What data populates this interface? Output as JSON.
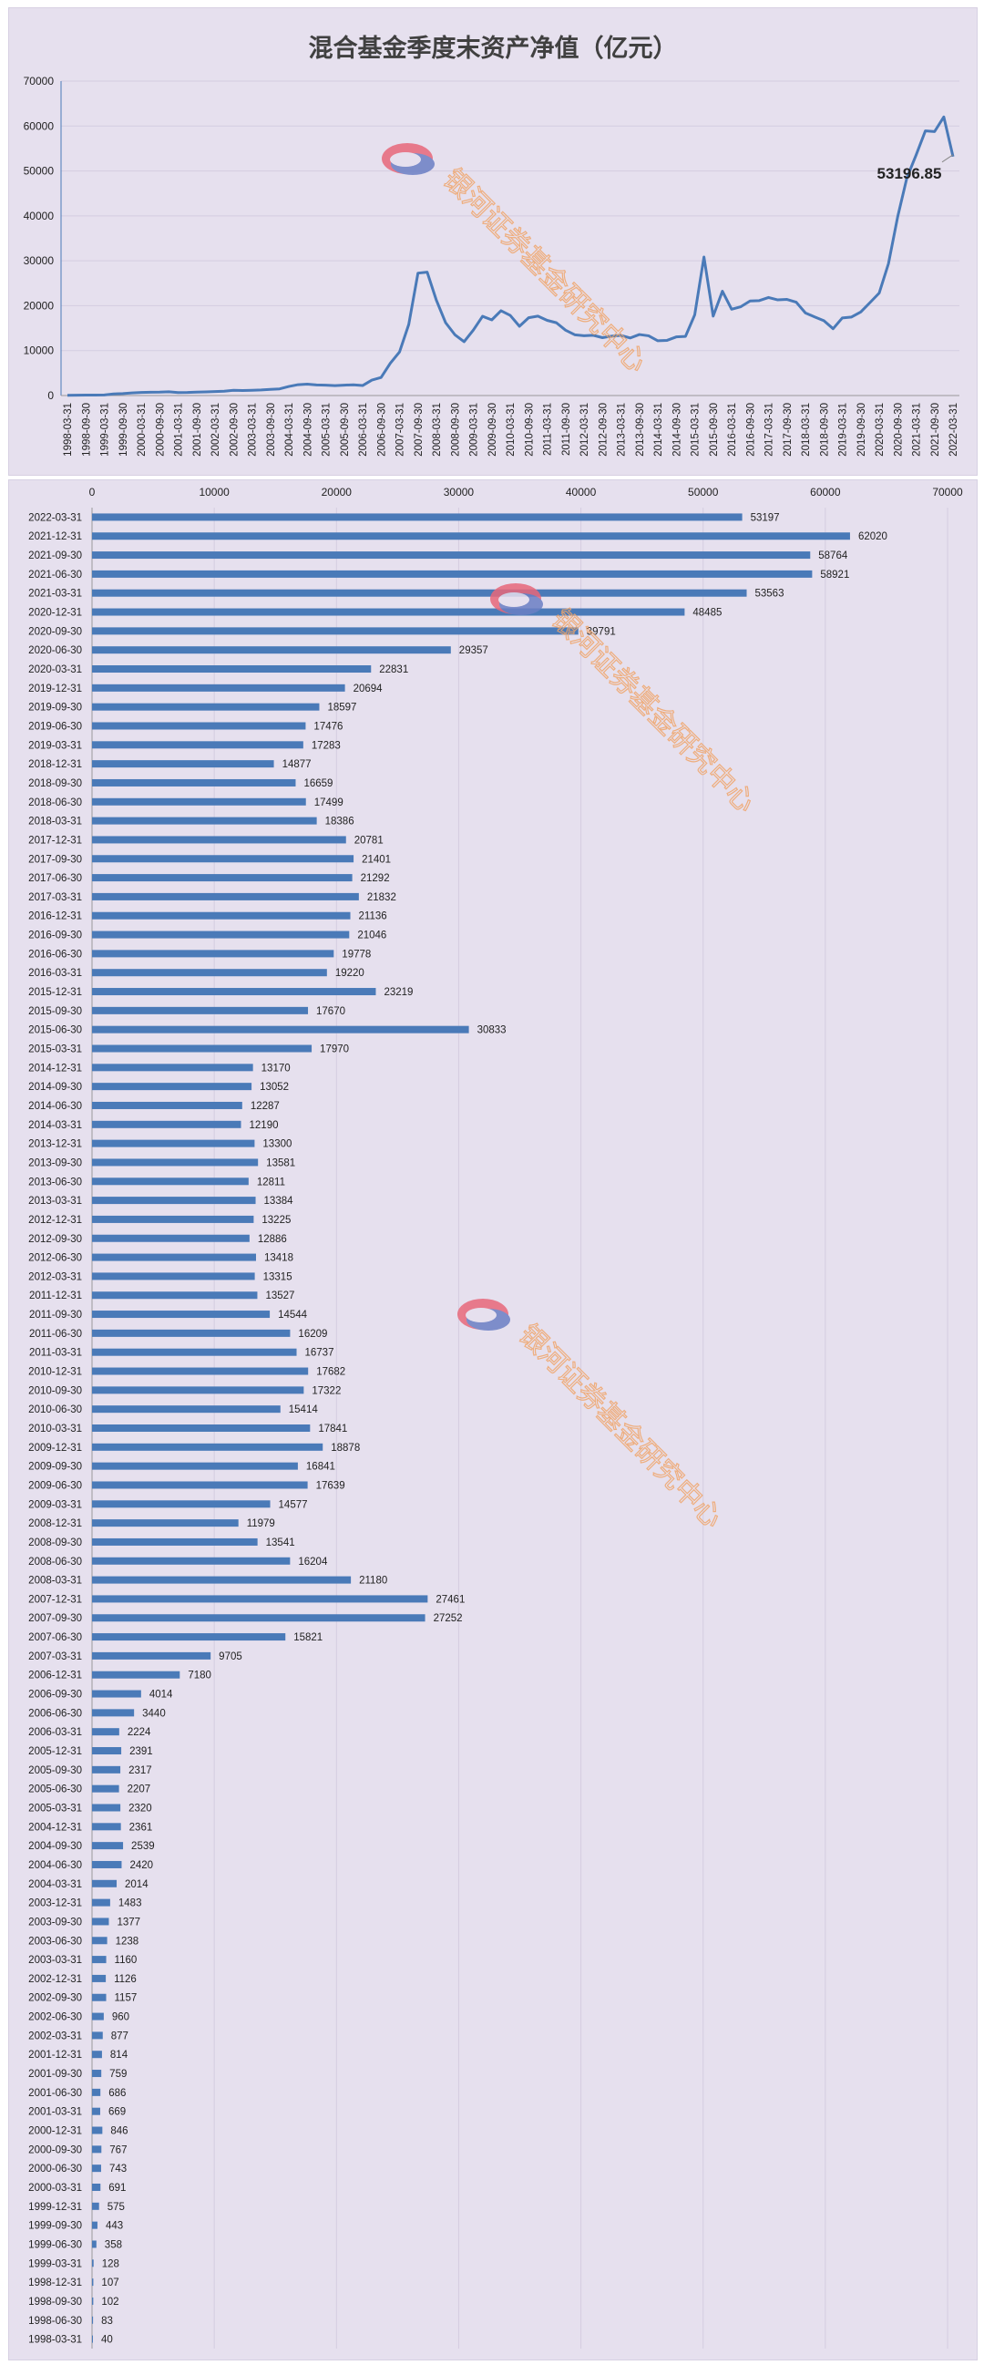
{
  "chart_data": [
    {
      "type": "line",
      "title": "混合基金季度末资产净值（亿元）",
      "ylim": [
        0,
        70000
      ],
      "y_ticks": [
        "0",
        "10000",
        "20000",
        "30000",
        "40000",
        "50000",
        "60000",
        "70000"
      ],
      "x": [
        "1998-03-31",
        "1998-06-30",
        "1998-09-30",
        "1998-12-31",
        "1999-03-31",
        "1999-06-30",
        "1999-09-30",
        "1999-12-31",
        "2000-03-31",
        "2000-06-30",
        "2000-09-30",
        "2000-12-31",
        "2001-03-31",
        "2001-06-30",
        "2001-09-30",
        "2001-12-31",
        "2002-03-31",
        "2002-06-30",
        "2002-09-30",
        "2002-12-31",
        "2003-03-31",
        "2003-06-30",
        "2003-09-30",
        "2003-12-31",
        "2004-03-31",
        "2004-06-30",
        "2004-09-30",
        "2004-12-31",
        "2005-03-31",
        "2005-06-30",
        "2005-09-30",
        "2005-12-31",
        "2006-03-31",
        "2006-06-30",
        "2006-09-30",
        "2006-12-31",
        "2007-03-31",
        "2007-06-30",
        "2007-09-30",
        "2007-12-31",
        "2008-03-31",
        "2008-06-30",
        "2008-09-30",
        "2008-12-31",
        "2009-03-31",
        "2009-06-30",
        "2009-09-30",
        "2009-12-31",
        "2010-03-31",
        "2010-06-30",
        "2010-09-30",
        "2010-12-31",
        "2011-03-31",
        "2011-06-30",
        "2011-09-30",
        "2011-12-31",
        "2012-03-31",
        "2012-06-30",
        "2012-09-30",
        "2012-12-31",
        "2013-03-31",
        "2013-06-30",
        "2013-09-30",
        "2013-12-31",
        "2014-03-31",
        "2014-06-30",
        "2014-09-30",
        "2014-12-31",
        "2015-03-31",
        "2015-06-30",
        "2015-09-30",
        "2015-12-31",
        "2016-03-31",
        "2016-06-30",
        "2016-09-30",
        "2016-12-31",
        "2017-03-31",
        "2017-06-30",
        "2017-09-30",
        "2017-12-31",
        "2018-03-31",
        "2018-06-30",
        "2018-09-30",
        "2018-12-31",
        "2019-03-31",
        "2019-06-30",
        "2019-09-30",
        "2019-12-31",
        "2020-03-31",
        "2020-06-30",
        "2020-09-30",
        "2020-12-31",
        "2021-03-31",
        "2021-06-30",
        "2021-09-30",
        "2021-12-31",
        "2022-03-31"
      ],
      "x_tick_labels": [
        "1998-03-31",
        "1998-09-30",
        "1999-03-31",
        "1999-09-30",
        "2000-03-31",
        "2000-09-30",
        "2001-03-31",
        "2001-09-30",
        "2002-03-31",
        "2002-09-30",
        "2003-03-31",
        "2003-09-30",
        "2004-03-31",
        "2004-09-30",
        "2005-03-31",
        "2005-09-30",
        "2006-03-31",
        "2006-09-30",
        "2007-03-31",
        "2007-09-30",
        "2008-03-31",
        "2008-09-30",
        "2009-03-31",
        "2009-09-30",
        "2010-03-31",
        "2010-09-30",
        "2011-03-31",
        "2011-09-30",
        "2012-03-31",
        "2012-09-30",
        "2013-03-31",
        "2013-09-30",
        "2014-03-31",
        "2014-09-30",
        "2015-03-31",
        "2015-09-30",
        "2016-03-31",
        "2016-09-30",
        "2017-03-31",
        "2017-09-30",
        "2018-03-31",
        "2018-09-30",
        "2019-03-31",
        "2019-09-30",
        "2020-03-31",
        "2020-09-30",
        "2021-03-31",
        "2021-09-30",
        "2022-03-31"
      ],
      "values": [
        40,
        83,
        102,
        107,
        128,
        358,
        443,
        575,
        691,
        743,
        767,
        846,
        669,
        686,
        759,
        814,
        877,
        960,
        1157,
        1126,
        1160,
        1238,
        1377,
        1483,
        2014,
        2420,
        2539,
        2361,
        2320,
        2207,
        2317,
        2391,
        2224,
        3440,
        4014,
        7180,
        9705,
        15821,
        27252,
        27461,
        21180,
        16204,
        13541,
        11979,
        14577,
        17639,
        16841,
        18878,
        17841,
        15414,
        17322,
        17682,
        16737,
        16209,
        14544,
        13527,
        13315,
        13418,
        12886,
        13225,
        13384,
        12811,
        13581,
        13300,
        12190,
        12287,
        13052,
        13170,
        17970,
        30833,
        17670,
        23219,
        19220,
        19778,
        21046,
        21136,
        21832,
        21292,
        21401,
        20781,
        18386,
        17499,
        16659,
        14877,
        17283,
        17476,
        18597,
        20694,
        22831,
        29357,
        39791,
        48485,
        53563,
        58921,
        58764,
        62020,
        53197
      ],
      "annotation": "53196.85",
      "color": "#4a7ab8",
      "grid": true
    },
    {
      "type": "bar",
      "orientation": "horizontal",
      "xlim": [
        0,
        70000
      ],
      "x_ticks": [
        "0",
        "10000",
        "20000",
        "30000",
        "40000",
        "50000",
        "60000",
        "70000"
      ],
      "categories": [
        "2022-03-31",
        "2021-12-31",
        "2021-09-30",
        "2021-06-30",
        "2021-03-31",
        "2020-12-31",
        "2020-09-30",
        "2020-06-30",
        "2020-03-31",
        "2019-12-31",
        "2019-09-30",
        "2019-06-30",
        "2019-03-31",
        "2018-12-31",
        "2018-09-30",
        "2018-06-30",
        "2018-03-31",
        "2017-12-31",
        "2017-09-30",
        "2017-06-30",
        "2017-03-31",
        "2016-12-31",
        "2016-09-30",
        "2016-06-30",
        "2016-03-31",
        "2015-12-31",
        "2015-09-30",
        "2015-06-30",
        "2015-03-31",
        "2014-12-31",
        "2014-09-30",
        "2014-06-30",
        "2014-03-31",
        "2013-12-31",
        "2013-09-30",
        "2013-06-30",
        "2013-03-31",
        "2012-12-31",
        "2012-09-30",
        "2012-06-30",
        "2012-03-31",
        "2011-12-31",
        "2011-09-30",
        "2011-06-30",
        "2011-03-31",
        "2010-12-31",
        "2010-09-30",
        "2010-06-30",
        "2010-03-31",
        "2009-12-31",
        "2009-09-30",
        "2009-06-30",
        "2009-03-31",
        "2008-12-31",
        "2008-09-30",
        "2008-06-30",
        "2008-03-31",
        "2007-12-31",
        "2007-09-30",
        "2007-06-30",
        "2007-03-31",
        "2006-12-31",
        "2006-09-30",
        "2006-06-30",
        "2006-03-31",
        "2005-12-31",
        "2005-09-30",
        "2005-06-30",
        "2005-03-31",
        "2004-12-31",
        "2004-09-30",
        "2004-06-30",
        "2004-03-31",
        "2003-12-31",
        "2003-09-30",
        "2003-06-30",
        "2003-03-31",
        "2002-12-31",
        "2002-09-30",
        "2002-06-30",
        "2002-03-31",
        "2001-12-31",
        "2001-09-30",
        "2001-06-30",
        "2001-03-31",
        "2000-12-31",
        "2000-09-30",
        "2000-06-30",
        "2000-03-31",
        "1999-12-31",
        "1999-09-30",
        "1999-06-30",
        "1999-03-31",
        "1998-12-31",
        "1998-09-30",
        "1998-06-30",
        "1998-03-31"
      ],
      "values": [
        53197,
        62020,
        58764,
        58921,
        53563,
        48485,
        39791,
        29357,
        22831,
        20694,
        18597,
        17476,
        17283,
        14877,
        16659,
        17499,
        18386,
        20781,
        21401,
        21292,
        21832,
        21136,
        21046,
        19778,
        19220,
        23219,
        17670,
        30833,
        17970,
        13170,
        13052,
        12287,
        12190,
        13300,
        13581,
        12811,
        13384,
        13225,
        12886,
        13418,
        13315,
        13527,
        14544,
        16209,
        16737,
        17682,
        17322,
        15414,
        17841,
        18878,
        16841,
        17639,
        14577,
        11979,
        13541,
        16204,
        21180,
        27461,
        27252,
        15821,
        9705,
        7180,
        4014,
        3440,
        2224,
        2391,
        2317,
        2207,
        2320,
        2361,
        2539,
        2420,
        2014,
        1483,
        1377,
        1238,
        1160,
        1126,
        1157,
        960,
        877,
        814,
        759,
        686,
        669,
        846,
        767,
        743,
        691,
        575,
        443,
        358,
        128,
        107,
        102,
        83,
        40
      ],
      "color": "#4a7ab8",
      "grid": true
    }
  ],
  "watermark": {
    "text": "银河证券基金研究中心",
    "color": "#f0a56a",
    "logo_colors": [
      "#e8687a",
      "#6b7fc4"
    ]
  }
}
